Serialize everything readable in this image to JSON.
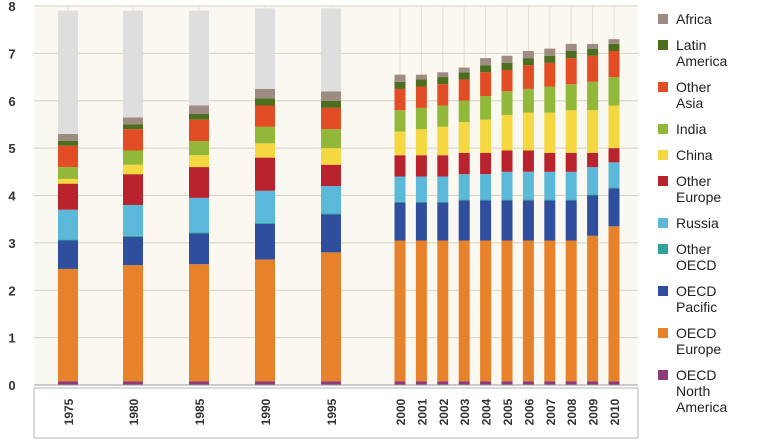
{
  "chart_data": {
    "type": "bar",
    "stacked": true,
    "title": "",
    "xlabel": "",
    "ylabel": "",
    "ylim": [
      0,
      8
    ],
    "yticks": [
      "0",
      "1",
      "2",
      "3",
      "4",
      "5",
      "6",
      "7",
      "8"
    ],
    "grid": true,
    "legend_position": "right",
    "categories": [
      "1975",
      "1980",
      "1985",
      "1990",
      "1995",
      "2000",
      "2001",
      "2002",
      "2003",
      "2004",
      "2005",
      "2006",
      "2007",
      "2008",
      "2009",
      "2010"
    ],
    "series": [
      {
        "name": "OECD North America",
        "color": "#8e3b78",
        "values": [
          0.08,
          0.08,
          0.08,
          0.08,
          0.08,
          0.08,
          0.08,
          0.08,
          0.08,
          0.08,
          0.08,
          0.08,
          0.08,
          0.08,
          0.08,
          0.08
        ]
      },
      {
        "name": "OECD Europe",
        "color": "#e8822a",
        "values": [
          2.37,
          2.45,
          2.47,
          2.57,
          2.72,
          2.97,
          2.97,
          2.97,
          2.97,
          2.97,
          2.97,
          2.97,
          2.97,
          2.97,
          3.07,
          3.27
        ]
      },
      {
        "name": "OECD Pacific",
        "color": "#2f4e9e",
        "values": [
          0.6,
          0.6,
          0.65,
          0.75,
          0.8,
          0.8,
          0.8,
          0.8,
          0.85,
          0.85,
          0.85,
          0.85,
          0.85,
          0.85,
          0.85,
          0.8
        ]
      },
      {
        "name": "Other OECD",
        "color": "#2fa39a",
        "values": [
          0.02,
          0.02,
          0.02,
          0.02,
          0.02,
          0.02,
          0.02,
          0.02,
          0.02,
          0.02,
          0.02,
          0.02,
          0.02,
          0.02,
          0.02,
          0.02
        ]
      },
      {
        "name": "Russia",
        "color": "#5bb8d9",
        "values": [
          0.63,
          0.65,
          0.73,
          0.68,
          0.58,
          0.53,
          0.53,
          0.53,
          0.53,
          0.53,
          0.58,
          0.58,
          0.58,
          0.58,
          0.58,
          0.53
        ]
      },
      {
        "name": "Other Europe",
        "color": "#b8232e",
        "values": [
          0.55,
          0.65,
          0.65,
          0.7,
          0.45,
          0.45,
          0.45,
          0.45,
          0.45,
          0.45,
          0.45,
          0.45,
          0.4,
          0.4,
          0.3,
          0.3
        ]
      },
      {
        "name": "China",
        "color": "#f5d840",
        "values": [
          0.1,
          0.2,
          0.25,
          0.3,
          0.35,
          0.5,
          0.55,
          0.6,
          0.65,
          0.7,
          0.75,
          0.8,
          0.85,
          0.9,
          0.9,
          0.9
        ]
      },
      {
        "name": "India",
        "color": "#92b83a",
        "values": [
          0.25,
          0.3,
          0.3,
          0.35,
          0.4,
          0.45,
          0.45,
          0.45,
          0.45,
          0.5,
          0.5,
          0.5,
          0.55,
          0.55,
          0.6,
          0.6
        ]
      },
      {
        "name": "Other Asia",
        "color": "#e24d26",
        "values": [
          0.45,
          0.45,
          0.45,
          0.45,
          0.45,
          0.45,
          0.45,
          0.45,
          0.45,
          0.5,
          0.45,
          0.5,
          0.5,
          0.55,
          0.55,
          0.55
        ]
      },
      {
        "name": "Latin America",
        "color": "#4d6e1e",
        "values": [
          0.1,
          0.1,
          0.12,
          0.15,
          0.15,
          0.15,
          0.15,
          0.15,
          0.15,
          0.15,
          0.15,
          0.15,
          0.15,
          0.15,
          0.15,
          0.15
        ]
      },
      {
        "name": "Africa",
        "color": "#9e8c82",
        "values": [
          0.15,
          0.15,
          0.18,
          0.2,
          0.2,
          0.15,
          0.1,
          0.1,
          0.1,
          0.15,
          0.15,
          0.15,
          0.15,
          0.15,
          0.1,
          0.1
        ]
      },
      {
        "name": "",
        "color": "#dedede",
        "values": [
          2.6,
          2.25,
          2.0,
          1.7,
          1.75,
          0,
          0,
          0,
          0,
          0,
          0,
          0,
          0,
          0,
          0,
          0
        ]
      }
    ],
    "legend": [
      {
        "lines": [
          "Africa"
        ],
        "color": "#9e8c82"
      },
      {
        "lines": [
          "Latin",
          "America"
        ],
        "color": "#4d6e1e"
      },
      {
        "lines": [
          "Other",
          "Asia"
        ],
        "color": "#e24d26"
      },
      {
        "lines": [
          "India"
        ],
        "color": "#92b83a"
      },
      {
        "lines": [
          "China"
        ],
        "color": "#f5d840"
      },
      {
        "lines": [
          "Other",
          "Europe"
        ],
        "color": "#b8232e"
      },
      {
        "lines": [
          "Russia"
        ],
        "color": "#5bb8d9"
      },
      {
        "lines": [
          "Other",
          "OECD"
        ],
        "color": "#2fa39a"
      },
      {
        "lines": [
          "OECD",
          "Pacific"
        ],
        "color": "#2f4e9e"
      },
      {
        "lines": [
          "OECD",
          "Europe"
        ],
        "color": "#e8822a"
      },
      {
        "lines": [
          "OECD",
          "North",
          "America"
        ],
        "color": "#8e3b78"
      }
    ]
  }
}
